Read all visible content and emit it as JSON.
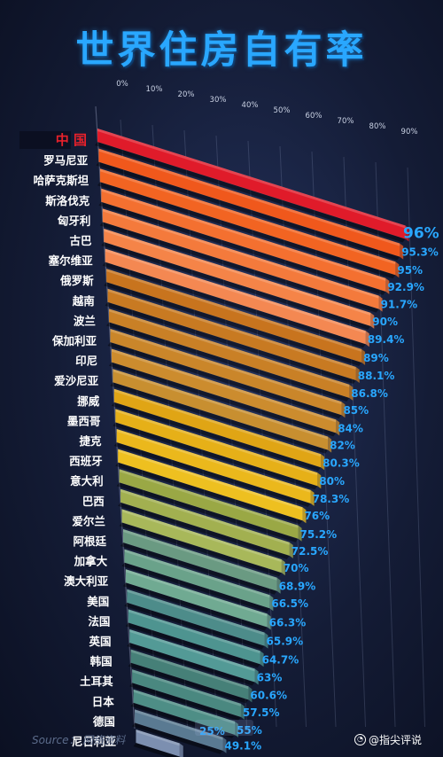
{
  "title": "世界住房自有率",
  "source": "Source： 网络资料",
  "watermark": "@指尖评说",
  "extra_label": "25%",
  "chart_data": {
    "type": "bar",
    "title": "世界住房自有率",
    "tick_labels": [
      "0%",
      "10%",
      "20%",
      "30%",
      "40%",
      "50%",
      "60%",
      "70%",
      "80%",
      "90%"
    ],
    "xlim": [
      0,
      100
    ],
    "highlight": "中 国",
    "categories": [
      "中 国",
      "罗马尼亚",
      "哈萨克斯坦",
      "斯洛伐克",
      "匈牙利",
      "古巴",
      "塞尔维亚",
      "俄罗斯",
      "越南",
      "波兰",
      "保加利亚",
      "印尼",
      "爱沙尼亚",
      "挪威",
      "墨西哥",
      "捷克",
      "西班牙",
      "意大利",
      "巴西",
      "爱尔兰",
      "阿根廷",
      "加拿大",
      "澳大利亚",
      "美国",
      "法国",
      "英国",
      "韩国",
      "土耳其",
      "日本",
      "德国",
      "尼日利亚"
    ],
    "values": [
      96,
      95.3,
      95,
      92.9,
      91.7,
      90,
      89.4,
      89,
      88.1,
      86.8,
      85,
      84,
      82,
      80.3,
      80,
      78.3,
      76,
      75.2,
      72.5,
      70,
      68.9,
      66.5,
      66.3,
      65.9,
      64.7,
      63,
      60.6,
      57.5,
      55,
      49.1,
      25
    ],
    "value_labels": [
      "96%",
      "95.3%",
      "95%",
      "92.9%",
      "91.7%",
      "90%",
      "89.4%",
      "89%",
      "88.1%",
      "86.8%",
      "85%",
      "84%",
      "82%",
      "80.3%",
      "80%",
      "78.3%",
      "76%",
      "75.2%",
      "72.5%",
      "70%",
      "68.9%",
      "66.5%",
      "66.3%",
      "65.9%",
      "64.7%",
      "63%",
      "60.6%",
      "57.5%",
      "55%",
      "49.1%",
      "25%"
    ],
    "colors": [
      "#e01b2a",
      "#f0581c",
      "#f26422",
      "#f47030",
      "#f47a3c",
      "#f58448",
      "#f48852",
      "#c8741e",
      "#c87a22",
      "#c98026",
      "#ca862a",
      "#cc8c2e",
      "#c88f30",
      "#e0a515",
      "#e6b018",
      "#ebb81c",
      "#eec020",
      "#9aa845",
      "#a2b050",
      "#a8b85a",
      "#6a9a82",
      "#6aa28a",
      "#70aa92",
      "#4d8c8a",
      "#4e9490",
      "#539a96",
      "#468078",
      "#4a8880",
      "#4e8e86",
      "#5a7a92",
      "#7c8fb0"
    ]
  }
}
